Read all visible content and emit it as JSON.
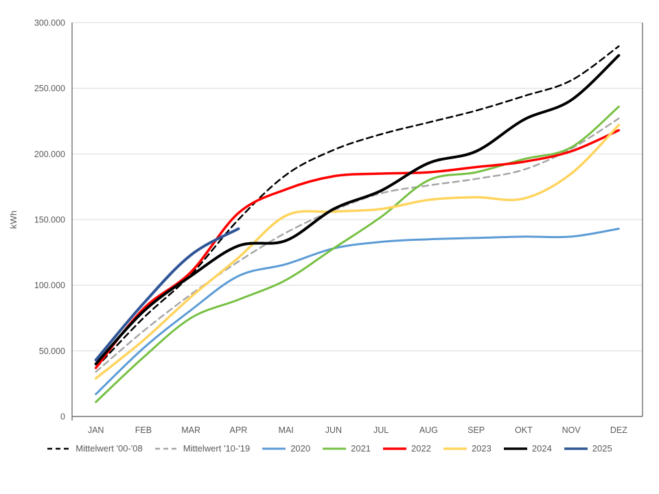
{
  "chart_data": {
    "type": "line",
    "title": "",
    "xlabel": "",
    "ylabel": "kWh",
    "ylim": [
      0,
      300000
    ],
    "ytick_values": [
      0,
      50000,
      100000,
      150000,
      200000,
      250000,
      300000
    ],
    "ytick_labels": [
      "0",
      "50.000",
      "100.000",
      "150.000",
      "200.000",
      "250.000",
      "300.000"
    ],
    "grid": true,
    "legend_position": "bottom",
    "categories": [
      "JAN",
      "FEB",
      "MAR",
      "APR",
      "MAI",
      "JUN",
      "JUL",
      "AUG",
      "SEP",
      "OKT",
      "NOV",
      "DEZ"
    ],
    "series": [
      {
        "name": "Mittelwert '00-'08",
        "color": "#000000",
        "dash": true,
        "width": 2.5,
        "values": [
          37000,
          75000,
          108000,
          150000,
          184000,
          203000,
          215000,
          224000,
          233000,
          244000,
          256000,
          282000
        ]
      },
      {
        "name": "Mittelwert '10-'19",
        "color": "#A6A6A6",
        "dash": true,
        "width": 2.5,
        "values": [
          34000,
          65000,
          93000,
          118000,
          140000,
          157000,
          170000,
          176000,
          181000,
          188000,
          204000,
          227000
        ]
      },
      {
        "name": "2020",
        "color": "#5B9BD5",
        "dash": false,
        "width": 3,
        "values": [
          17000,
          52000,
          81000,
          107000,
          116000,
          128000,
          133000,
          135000,
          136000,
          137000,
          137000,
          143000
        ]
      },
      {
        "name": "2021",
        "color": "#76C043",
        "dash": false,
        "width": 3,
        "values": [
          11000,
          45000,
          75000,
          89000,
          104000,
          128000,
          152000,
          180000,
          186000,
          196000,
          205000,
          236000
        ]
      },
      {
        "name": "2022",
        "color": "#FF0000",
        "dash": false,
        "width": 3.5,
        "values": [
          37000,
          82000,
          110000,
          155000,
          173000,
          183000,
          185000,
          186000,
          190000,
          194000,
          202000,
          218000
        ]
      },
      {
        "name": "2023",
        "color": "#FFD45E",
        "dash": false,
        "width": 3.5,
        "values": [
          29000,
          58000,
          91000,
          121000,
          153000,
          156000,
          158000,
          165000,
          167000,
          166000,
          185000,
          222000
        ]
      },
      {
        "name": "2024",
        "color": "#000000",
        "dash": false,
        "width": 4,
        "values": [
          40000,
          80000,
          107000,
          130000,
          134000,
          158000,
          172000,
          193000,
          202000,
          226000,
          241000,
          275000
        ]
      },
      {
        "name": "2025",
        "color": "#2F5597",
        "dash": false,
        "width": 4,
        "values": [
          43000,
          86000,
          123000,
          143000,
          null,
          null,
          null,
          null,
          null,
          null,
          null,
          null
        ]
      }
    ],
    "colors": {
      "gridline": "#D9D9D9",
      "axis": "#595959",
      "tick_text": "#595959",
      "legend_text": "#595959"
    }
  }
}
